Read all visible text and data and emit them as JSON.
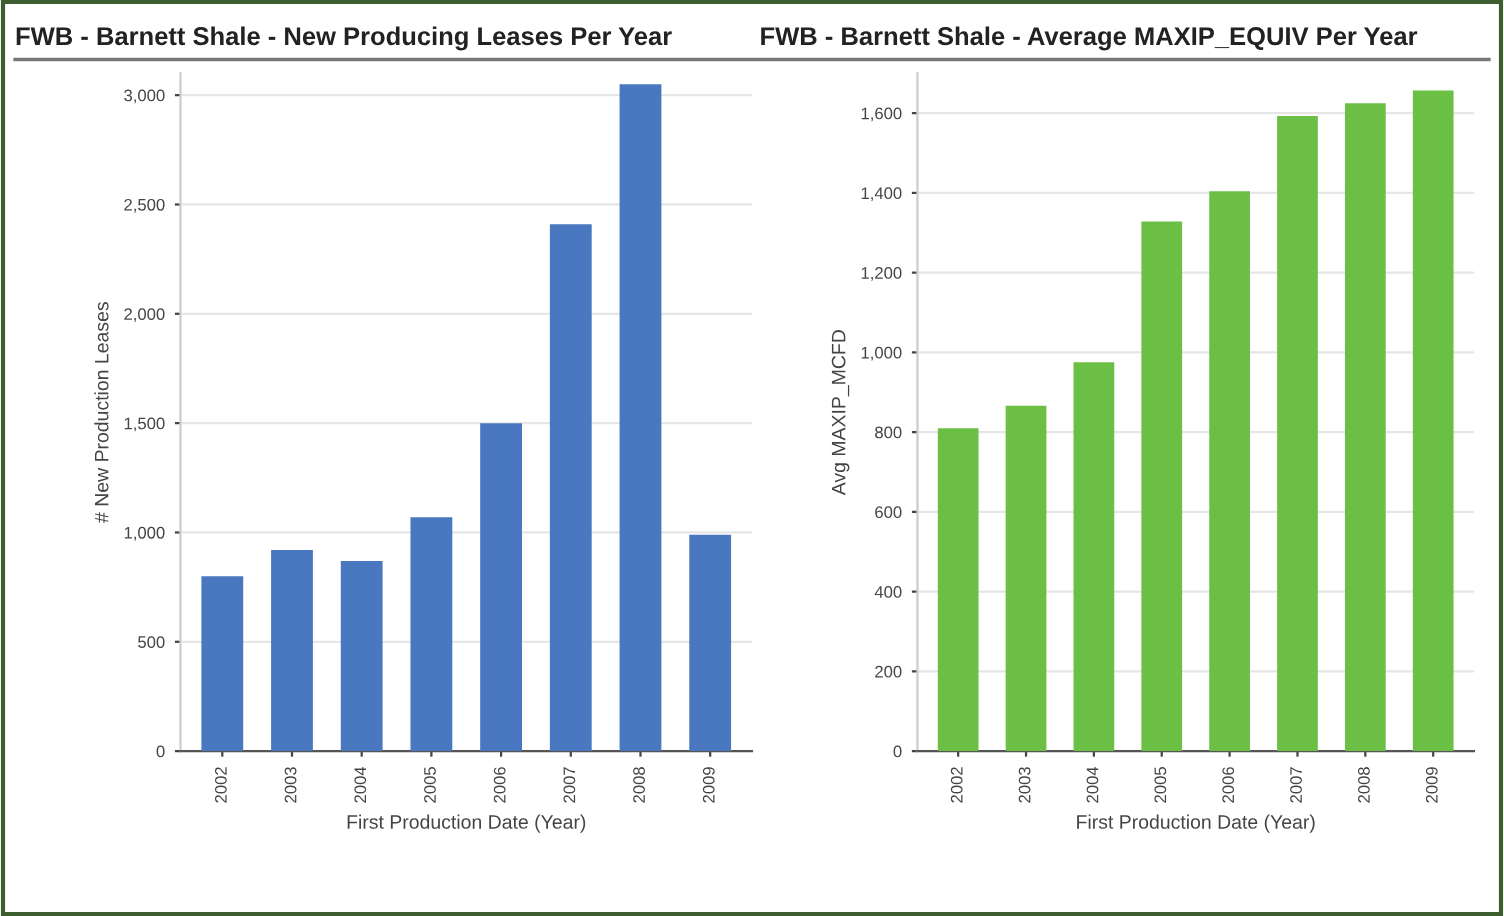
{
  "chart_data": [
    {
      "type": "bar",
      "title": "FWB - Barnett Shale - New Producing Leases Per Year",
      "xlabel": "First Production Date (Year)",
      "ylabel": "# New Production Leases",
      "categories": [
        "2002",
        "2003",
        "2004",
        "2005",
        "2006",
        "2007",
        "2008",
        "2009"
      ],
      "series": [
        {
          "color": "#4a78c0",
          "values": [
            800,
            920,
            870,
            1070,
            1500,
            2410,
            3050,
            990
          ]
        }
      ],
      "ylim": [
        0,
        3100
      ],
      "yticks": [
        0,
        500,
        {
          "value": 1000,
          "label": "1,000"
        },
        {
          "value": 1500,
          "label": "1,500"
        },
        {
          "value": 2000,
          "label": "2,000"
        },
        {
          "value": 2500,
          "label": "2,500"
        },
        {
          "value": 3000,
          "label": "3,000"
        }
      ],
      "grid": "y"
    },
    {
      "type": "bar",
      "title": "FWB - Barnett Shale - Average MAXIP_EQUIV Per Year",
      "xlabel": "First Production Date (Year)",
      "ylabel": "Avg MAXIP_MCFD",
      "categories": [
        "2002",
        "2003",
        "2004",
        "2005",
        "2006",
        "2007",
        "2008",
        "2009"
      ],
      "series": [
        {
          "color": "#6cbf45",
          "values": [
            810,
            866,
            975,
            1328,
            1404,
            1593,
            1625,
            1657
          ]
        }
      ],
      "ylim": [
        0,
        1700
      ],
      "yticks": [
        0,
        200,
        400,
        600,
        800,
        {
          "value": 1000,
          "label": "1,000"
        },
        {
          "value": 1200,
          "label": "1,200"
        },
        {
          "value": 1400,
          "label": "1,400"
        },
        {
          "value": 1600,
          "label": "1,600"
        }
      ],
      "grid": "y"
    }
  ]
}
